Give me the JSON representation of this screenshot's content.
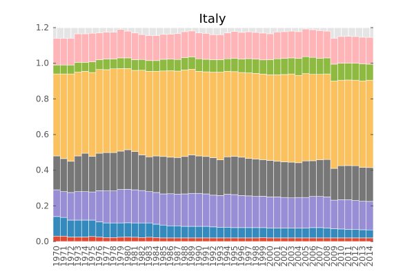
{
  "chart_data": {
    "type": "bar",
    "stacked": true,
    "title": "Italy",
    "xlabel": "",
    "ylabel": "",
    "ylim": [
      0,
      1.2
    ],
    "yticks": [
      "0.0",
      "0.2",
      "0.4",
      "0.6",
      "0.8",
      "1.0",
      "1.2"
    ],
    "grid": true,
    "legend": "none",
    "categories": [
      "1970",
      "1971",
      "1972",
      "1973",
      "1974",
      "1975",
      "1976",
      "1977",
      "1978",
      "1979",
      "1980",
      "1981",
      "1982",
      "1983",
      "1984",
      "1985",
      "1986",
      "1987",
      "1988",
      "1989",
      "1990",
      "1991",
      "1992",
      "1993",
      "1994",
      "1995",
      "1996",
      "1997",
      "1998",
      "1999",
      "2000",
      "2001",
      "2002",
      "2003",
      "2004",
      "2005",
      "2006",
      "2007",
      "2008",
      "2009",
      "2010",
      "2011",
      "2012",
      "2013",
      "2014"
    ],
    "series": [
      {
        "color": "#E24A33",
        "values": [
          0.03,
          0.03,
          0.025,
          0.025,
          0.025,
          0.028,
          0.025,
          0.022,
          0.022,
          0.024,
          0.025,
          0.024,
          0.022,
          0.024,
          0.022,
          0.02,
          0.02,
          0.02,
          0.02,
          0.02,
          0.02,
          0.02,
          0.02,
          0.02,
          0.02,
          0.02,
          0.02,
          0.02,
          0.02,
          0.022,
          0.02,
          0.02,
          0.02,
          0.02,
          0.02,
          0.02,
          0.02,
          0.02,
          0.02,
          0.02,
          0.02,
          0.02,
          0.02,
          0.02,
          0.02
        ]
      },
      {
        "color": "#348ABD",
        "values": [
          0.11,
          0.105,
          0.095,
          0.095,
          0.095,
          0.092,
          0.085,
          0.082,
          0.082,
          0.08,
          0.08,
          0.08,
          0.082,
          0.08,
          0.075,
          0.072,
          0.068,
          0.068,
          0.065,
          0.065,
          0.065,
          0.065,
          0.062,
          0.06,
          0.06,
          0.058,
          0.058,
          0.058,
          0.058,
          0.056,
          0.055,
          0.055,
          0.055,
          0.055,
          0.055,
          0.055,
          0.058,
          0.058,
          0.055,
          0.052,
          0.05,
          0.048,
          0.047,
          0.046,
          0.045
        ]
      },
      {
        "color": "#988ED5",
        "values": [
          0.15,
          0.145,
          0.155,
          0.16,
          0.16,
          0.158,
          0.175,
          0.18,
          0.18,
          0.188,
          0.188,
          0.186,
          0.182,
          0.176,
          0.178,
          0.175,
          0.18,
          0.178,
          0.182,
          0.185,
          0.185,
          0.182,
          0.178,
          0.178,
          0.185,
          0.185,
          0.18,
          0.178,
          0.175,
          0.176,
          0.175,
          0.175,
          0.172,
          0.17,
          0.172,
          0.172,
          0.175,
          0.175,
          0.175,
          0.16,
          0.165,
          0.166,
          0.163,
          0.16,
          0.16
        ]
      },
      {
        "color": "#777777",
        "values": [
          0.19,
          0.185,
          0.175,
          0.2,
          0.215,
          0.2,
          0.21,
          0.215,
          0.215,
          0.215,
          0.222,
          0.215,
          0.2,
          0.195,
          0.205,
          0.21,
          0.205,
          0.205,
          0.21,
          0.216,
          0.21,
          0.21,
          0.21,
          0.2,
          0.21,
          0.215,
          0.215,
          0.21,
          0.21,
          0.205,
          0.205,
          0.2,
          0.2,
          0.2,
          0.195,
          0.205,
          0.2,
          0.205,
          0.21,
          0.178,
          0.19,
          0.192,
          0.195,
          0.19,
          0.19
        ]
      },
      {
        "color": "#FBC15E",
        "values": [
          0.46,
          0.475,
          0.49,
          0.47,
          0.46,
          0.47,
          0.47,
          0.465,
          0.47,
          0.463,
          0.455,
          0.455,
          0.475,
          0.48,
          0.475,
          0.48,
          0.485,
          0.485,
          0.485,
          0.48,
          0.475,
          0.475,
          0.48,
          0.492,
          0.48,
          0.475,
          0.475,
          0.48,
          0.48,
          0.48,
          0.48,
          0.485,
          0.49,
          0.495,
          0.49,
          0.49,
          0.485,
          0.48,
          0.48,
          0.49,
          0.48,
          0.48,
          0.48,
          0.485,
          0.49
        ]
      },
      {
        "color": "#8EBA42",
        "values": [
          0.05,
          0.05,
          0.05,
          0.055,
          0.05,
          0.06,
          0.055,
          0.06,
          0.055,
          0.06,
          0.06,
          0.06,
          0.06,
          0.06,
          0.06,
          0.065,
          0.065,
          0.065,
          0.07,
          0.07,
          0.07,
          0.07,
          0.07,
          0.07,
          0.07,
          0.075,
          0.075,
          0.08,
          0.08,
          0.08,
          0.085,
          0.09,
          0.09,
          0.09,
          0.095,
          0.095,
          0.095,
          0.09,
          0.09,
          0.095,
          0.095,
          0.095,
          0.095,
          0.095,
          0.09
        ]
      },
      {
        "color": "#FFB5B8",
        "values": [
          0.15,
          0.15,
          0.15,
          0.16,
          0.16,
          0.16,
          0.15,
          0.15,
          0.15,
          0.16,
          0.15,
          0.15,
          0.14,
          0.14,
          0.14,
          0.14,
          0.14,
          0.145,
          0.145,
          0.145,
          0.145,
          0.145,
          0.14,
          0.14,
          0.145,
          0.15,
          0.15,
          0.15,
          0.15,
          0.15,
          0.145,
          0.15,
          0.15,
          0.15,
          0.15,
          0.155,
          0.155,
          0.155,
          0.15,
          0.145,
          0.15,
          0.15,
          0.15,
          0.15,
          0.15
        ]
      }
    ]
  }
}
